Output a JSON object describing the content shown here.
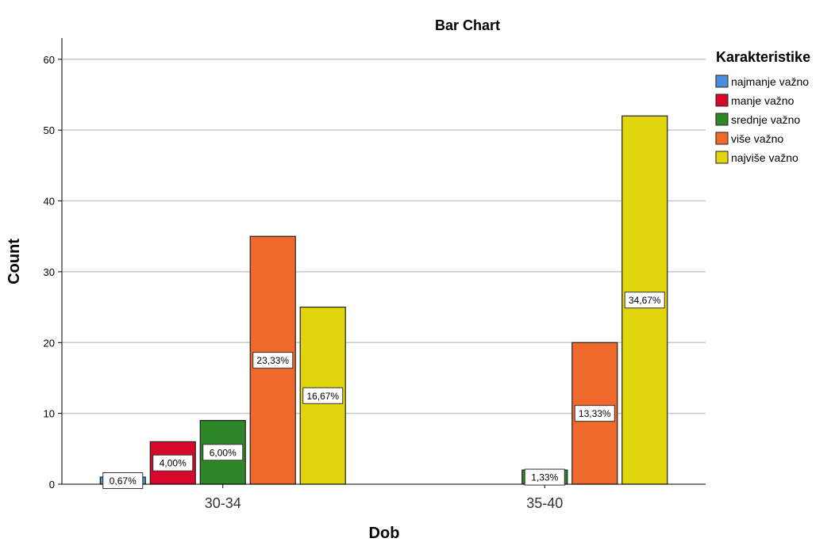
{
  "chart_data": {
    "type": "bar",
    "title": "Bar Chart",
    "xlabel": "Dob",
    "ylabel": "Count",
    "ylim": [
      0,
      63
    ],
    "yticks": [
      0,
      10,
      20,
      30,
      40,
      50,
      60
    ],
    "grid": true,
    "legend_title": "Karakteristike",
    "legend_position": "right",
    "categories": [
      "30-34",
      "35-40"
    ],
    "series": [
      {
        "name": "najmanje važno",
        "color": "#4a90d9",
        "values": [
          1,
          0
        ],
        "labels": [
          "0,67%",
          ""
        ]
      },
      {
        "name": "manje važno",
        "color": "#d7082a",
        "values": [
          6,
          0
        ],
        "labels": [
          "4,00%",
          ""
        ]
      },
      {
        "name": "srednje važno",
        "color": "#2d8727",
        "values": [
          9,
          2
        ],
        "labels": [
          "6,00%",
          "1,33%"
        ]
      },
      {
        "name": "više važno",
        "color": "#f0692c",
        "values": [
          35,
          20
        ],
        "labels": [
          "23,33%",
          "13,33%"
        ]
      },
      {
        "name": "najviše važno",
        "color": "#e1d50c",
        "values": [
          25,
          52
        ],
        "labels": [
          "16,67%",
          "34,67%"
        ]
      }
    ]
  }
}
